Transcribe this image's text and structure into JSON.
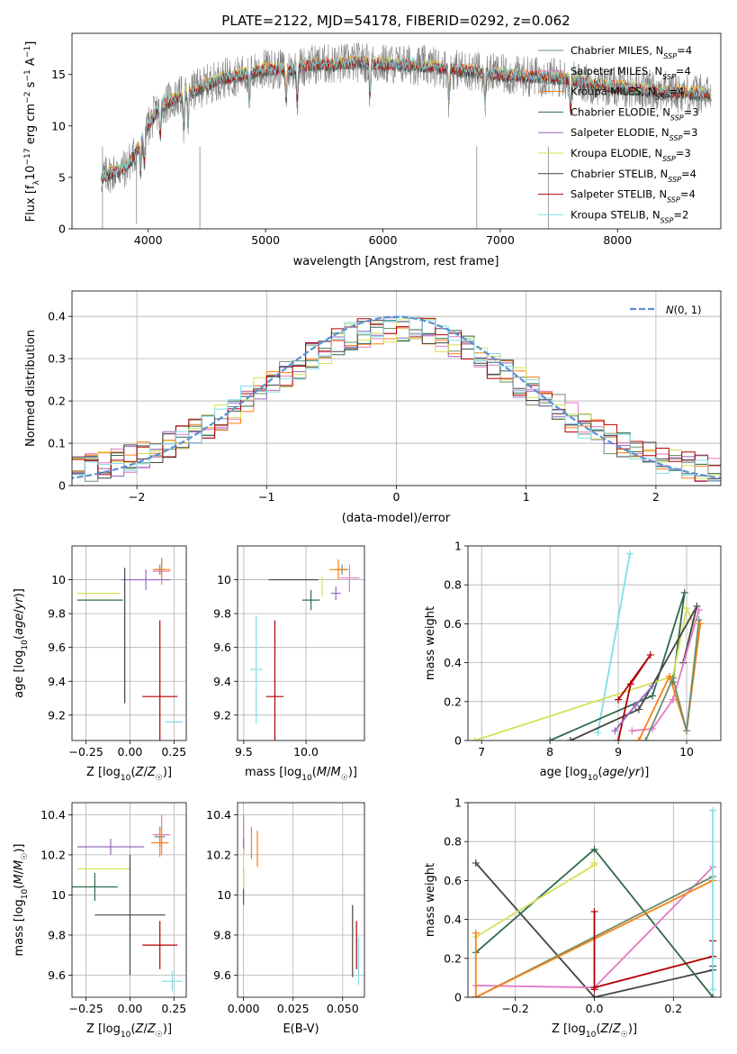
{
  "colors": {
    "Chabrier MILES": "#6b8f71",
    "Salpeter MILES": "#e377c2",
    "Kroupa MILES": "#ff7f0e",
    "Chabrier ELODIE": "#2e6b4a",
    "Salpeter ELODIE": "#9467bd",
    "Kroupa ELODIE": "#d4e157",
    "Chabrier STELIB": "#444444",
    "Salpeter STELIB": "#b30000",
    "Kroupa STELIB": "#80deea",
    "data": "#808080",
    "gauss": "#5b8fd6"
  },
  "chart_data": [
    {
      "type": "line",
      "title": "PLATE=2122, MJD=54178, FIBERID=0292, z=0.062",
      "xlabel": "wavelength [Angstrom, rest frame]",
      "ylabel": "Flux [fλ10⁻¹⁷ erg cm⁻² s⁻¹ A⁻¹]",
      "xlim": [
        3350,
        8880
      ],
      "ylim": [
        0,
        19
      ],
      "xticks": [
        4000,
        5000,
        6000,
        7000,
        8000
      ],
      "yticks": [
        0,
        5,
        10,
        15
      ],
      "legend": "upper-right",
      "series": [
        {
          "name": "Chabrier MILES, N_SSP=4"
        },
        {
          "name": "Salpeter MILES, N_SSP=4"
        },
        {
          "name": "Kroupa MILES, N_SSP=4"
        },
        {
          "name": "Chabrier ELODIE, N_SSP=3"
        },
        {
          "name": "Salpeter ELODIE, N_SSP=3"
        },
        {
          "name": "Kroupa ELODIE, N_SSP=3"
        },
        {
          "name": "Chabrier STELIB, N_SSP=4"
        },
        {
          "name": "Salpeter STELIB, N_SSP=4"
        },
        {
          "name": "Kroupa STELIB, N_SSP=2"
        }
      ],
      "continuum": {
        "x": [
          3600,
          3700,
          3800,
          3900,
          4000,
          4100,
          4200,
          4300,
          4400,
          4500,
          4600,
          4800,
          5000,
          5200,
          5400,
          5600,
          5800,
          6000,
          6200,
          6400,
          6600,
          6800,
          7000,
          7200,
          7400,
          7600,
          7800,
          8000,
          8200,
          8400,
          8600,
          8800
        ],
        "y": [
          5.0,
          5.5,
          5.8,
          7.5,
          10.0,
          12.0,
          12.5,
          13.0,
          13.5,
          14.0,
          14.5,
          15.0,
          15.5,
          15.5,
          16.0,
          16.0,
          16.2,
          16.0,
          16.0,
          15.8,
          15.5,
          15.3,
          15.0,
          14.8,
          14.8,
          14.5,
          14.0,
          13.8,
          13.6,
          13.4,
          13.2,
          13.0
        ]
      }
    },
    {
      "type": "step",
      "xlabel": "(data-model)/error",
      "ylabel": "Normed distribution",
      "xlim": [
        -2.5,
        2.5
      ],
      "ylim": [
        0,
        0.46
      ],
      "xticks": [
        -2,
        -1,
        0,
        1,
        2
      ],
      "xticklabels": [
        "−2",
        "−1",
        "0",
        "1",
        "2"
      ],
      "yticks": [
        0.0,
        0.1,
        0.2,
        0.3,
        0.4
      ],
      "legend": "upper-right",
      "gauss_label": "N(0,1)",
      "bin_width": 0.1
    },
    {
      "type": "errorbar",
      "xlabel": "Z [log10(Z/Z☉)]",
      "ylabel": "age  [log10(age/yr)]",
      "xlim": [
        -0.33,
        0.32
      ],
      "ylim": [
        9.05,
        10.2
      ],
      "xticks": [
        -0.25,
        0.0,
        0.25
      ],
      "xticklabels": [
        "−0.25",
        "0.00",
        "0.25"
      ],
      "yticks": [
        9.2,
        9.4,
        9.6,
        9.8,
        10.0
      ],
      "points": [
        {
          "model": "Chabrier MILES",
          "x": 0.17,
          "xerr": 0.03,
          "y": 10.06,
          "yerr": 0.03
        },
        {
          "model": "Salpeter MILES",
          "x": 0.18,
          "xerr": 0.05,
          "y": 10.05,
          "yerr": 0.08
        },
        {
          "model": "Kroupa MILES",
          "x": 0.18,
          "xerr": 0.05,
          "y": 10.06,
          "yerr": 0.06
        },
        {
          "model": "Chabrier ELODIE",
          "x": -0.17,
          "xerr": 0.13,
          "y": 9.88,
          "yerr": 0.0
        },
        {
          "model": "Salpeter ELODIE",
          "x": 0.09,
          "xerr": 0.14,
          "y": 10.0,
          "yerr": 0.06
        },
        {
          "model": "Kroupa ELODIE",
          "x": -0.18,
          "xerr": 0.12,
          "y": 9.92,
          "yerr": 0.0
        },
        {
          "model": "Chabrier STELIB",
          "x": -0.03,
          "xerr": 0.0,
          "y": 9.67,
          "yerr": 0.4
        },
        {
          "model": "Salpeter STELIB",
          "x": 0.17,
          "xerr": 0.1,
          "y": 9.31,
          "yerr": 0.45
        },
        {
          "model": "Kroupa STELIB",
          "x": 0.25,
          "xerr": 0.05,
          "y": 9.16,
          "yerr": 0.0
        }
      ]
    },
    {
      "type": "errorbar",
      "xlabel": "mass [log10(M/M☉)]",
      "ylabel": "",
      "xlim": [
        9.45,
        10.47
      ],
      "ylim": [
        9.05,
        10.2
      ],
      "xticks": [
        9.5,
        10.0
      ],
      "xticklabels": [
        "9.5",
        "10.0"
      ],
      "yticks": [
        9.2,
        9.4,
        9.6,
        9.8,
        10.0
      ],
      "points": [
        {
          "model": "Chabrier MILES",
          "x": 10.29,
          "xerr": 0.05,
          "y": 10.06,
          "yerr": 0.03
        },
        {
          "model": "Salpeter MILES",
          "x": 10.35,
          "xerr": 0.08,
          "y": 10.01,
          "yerr": 0.08
        },
        {
          "model": "Kroupa MILES",
          "x": 10.26,
          "xerr": 0.07,
          "y": 10.06,
          "yerr": 0.06
        },
        {
          "model": "Chabrier ELODIE",
          "x": 10.04,
          "xerr": 0.07,
          "y": 9.88,
          "yerr": 0.06
        },
        {
          "model": "Salpeter ELODIE",
          "x": 10.24,
          "xerr": 0.04,
          "y": 9.92,
          "yerr": 0.04
        },
        {
          "model": "Kroupa ELODIE",
          "x": 10.13,
          "xerr": 0.0,
          "y": 9.96,
          "yerr": 0.06
        },
        {
          "model": "Chabrier STELIB",
          "x": 9.9,
          "xerr": 0.2,
          "y": 10.0,
          "yerr": 0.0
        },
        {
          "model": "Salpeter STELIB",
          "x": 9.75,
          "xerr": 0.07,
          "y": 9.31,
          "yerr": 0.45
        },
        {
          "model": "Kroupa STELIB",
          "x": 9.6,
          "xerr": 0.05,
          "y": 9.47,
          "yerr": 0.32
        }
      ]
    },
    {
      "type": "line",
      "xlabel": "age  [log10(age/yr)]",
      "ylabel": "mass weight",
      "xlim": [
        6.8,
        10.5
      ],
      "ylim": [
        0,
        1.0
      ],
      "xticks": [
        7,
        8,
        9,
        10
      ],
      "xticklabels": [
        "7",
        "8",
        "9",
        "10"
      ],
      "yticks": [
        0.0,
        0.2,
        0.4,
        0.6,
        0.8,
        1.0
      ],
      "series": [
        {
          "model": "Kroupa STELIB",
          "x": [
            8.7,
            9.17
          ],
          "y": [
            0.04,
            0.96
          ]
        },
        {
          "model": "Chabrier ELODIE",
          "x": [
            8.0,
            9.5,
            9.97,
            9.8
          ],
          "y": [
            0.0,
            0.23,
            0.76,
            0.3
          ]
        },
        {
          "model": "Kroupa ELODIE",
          "x": [
            6.9,
            9.8,
            10.0,
            10.1
          ],
          "y": [
            0.0,
            0.33,
            0.68,
            0.6
          ]
        },
        {
          "model": "Chabrier STELIB",
          "x": [
            8.3,
            9.3,
            10.15,
            9.95
          ],
          "y": [
            0.0,
            0.16,
            0.69,
            0.4
          ]
        },
        {
          "model": "Salpeter STELIB",
          "x": [
            9.0,
            9.18,
            9.47,
            9.0
          ],
          "y": [
            0.0,
            0.29,
            0.44,
            0.21
          ]
        },
        {
          "model": "Salpeter MILES",
          "x": [
            9.2,
            9.5,
            9.8,
            10.18
          ],
          "y": [
            0.05,
            0.06,
            0.21,
            0.67
          ]
        },
        {
          "model": "Kroupa MILES",
          "x": [
            9.3,
            9.75,
            10.0,
            10.2
          ],
          "y": [
            0.0,
            0.33,
            0.05,
            0.6
          ]
        },
        {
          "model": "Chabrier MILES",
          "x": [
            9.4,
            9.8,
            10.0,
            10.18
          ],
          "y": [
            0.0,
            0.32,
            0.05,
            0.62
          ]
        },
        {
          "model": "Salpeter ELODIE",
          "x": [
            8.95,
            9.25,
            9.5
          ],
          "y": [
            0.05,
            0.18,
            0.28
          ]
        }
      ]
    },
    {
      "type": "errorbar",
      "xlabel": "Z [log10(Z/Z☉)]",
      "ylabel": "mass [log10(M/M☉)]",
      "xlim": [
        -0.33,
        0.32
      ],
      "ylim": [
        9.49,
        10.46
      ],
      "xticks": [
        -0.25,
        0.0,
        0.25
      ],
      "xticklabels": [
        "−0.25",
        "0.00",
        "0.25"
      ],
      "yticks": [
        9.6,
        9.8,
        10.0,
        10.2,
        10.4
      ],
      "points": [
        {
          "model": "Chabrier MILES",
          "x": 0.17,
          "xerr": 0.03,
          "y": 10.29,
          "yerr": 0.05
        },
        {
          "model": "Salpeter MILES",
          "x": 0.18,
          "xerr": 0.05,
          "y": 10.3,
          "yerr": 0.1
        },
        {
          "model": "Kroupa MILES",
          "x": 0.17,
          "xerr": 0.05,
          "y": 10.26,
          "yerr": 0.07
        },
        {
          "model": "Chabrier ELODIE",
          "x": -0.2,
          "xerr": 0.13,
          "y": 10.04,
          "yerr": 0.07
        },
        {
          "model": "Salpeter ELODIE",
          "x": -0.11,
          "xerr": 0.19,
          "y": 10.24,
          "yerr": 0.04
        },
        {
          "model": "Kroupa ELODIE",
          "x": -0.15,
          "xerr": 0.15,
          "y": 10.13,
          "yerr": 0.0
        },
        {
          "model": "Chabrier STELIB",
          "x": 0.0,
          "xerr": 0.2,
          "y": 9.9,
          "yerr": 0.3
        },
        {
          "model": "Salpeter STELIB",
          "x": 0.17,
          "xerr": 0.1,
          "y": 9.75,
          "yerr": 0.12
        },
        {
          "model": "Kroupa STELIB",
          "x": 0.24,
          "xerr": 0.06,
          "y": 9.57,
          "yerr": 0.05
        }
      ]
    },
    {
      "type": "errorbar",
      "xlabel": "E(B-V)",
      "ylabel": "",
      "xlim": [
        -0.003,
        0.061
      ],
      "ylim": [
        9.49,
        10.46
      ],
      "xticks": [
        0.0,
        0.025,
        0.05
      ],
      "xticklabels": [
        "0.000",
        "0.025",
        "0.050"
      ],
      "yticks": [
        9.6,
        9.8,
        10.0,
        10.2,
        10.4
      ],
      "points": [
        {
          "model": "Chabrier MILES",
          "x": 0.0,
          "xerr": 0.0,
          "y": 10.29,
          "yerr": 0.09
        },
        {
          "model": "Salpeter MILES",
          "x": 0.0,
          "xerr": 0.0,
          "y": 10.3,
          "yerr": 0.1
        },
        {
          "model": "Kroupa MILES",
          "x": 0.004,
          "xerr": 0.0,
          "y": 10.26,
          "yerr": 0.08
        },
        {
          "model": "Chabrier ELODIE",
          "x": 0.0,
          "xerr": 0.0,
          "y": 10.04,
          "yerr": 0.09
        },
        {
          "model": "Salpeter ELODIE",
          "x": 0.0,
          "xerr": 0.0,
          "y": 10.24,
          "yerr": 0.04
        },
        {
          "model": "Kroupa ELODIE",
          "x": 0.0,
          "xerr": 0.0,
          "y": 10.13,
          "yerr": 0.1
        },
        {
          "model": "Chabrier STELIB",
          "x": 0.055,
          "xerr": 0.0,
          "y": 9.77,
          "yerr": 0.18
        },
        {
          "model": "Salpeter STELIB",
          "x": 0.057,
          "xerr": 0.0,
          "y": 9.75,
          "yerr": 0.12
        },
        {
          "model": "Kroupa STELIB",
          "x": 0.058,
          "xerr": 0.0,
          "y": 9.67,
          "yerr": 0.12
        },
        {
          "model": "Kroupa MILES",
          "x": 0.007,
          "xerr": 0.0,
          "y": 10.23,
          "yerr": 0.09
        }
      ]
    },
    {
      "type": "line",
      "xlabel": "Z [log10(Z/Z☉)]",
      "ylabel": "mass weight",
      "xlim": [
        -0.32,
        0.32
      ],
      "ylim": [
        0,
        1.0
      ],
      "xticks": [
        -0.2,
        0.0,
        0.2
      ],
      "xticklabels": [
        "−0.2",
        "0.0",
        "0.2"
      ],
      "yticks": [
        0.0,
        0.2,
        0.4,
        0.6,
        0.8,
        1.0
      ],
      "series": [
        {
          "model": "Chabrier STELIB",
          "x": [
            -0.3,
            0.0,
            0.3,
            0.3
          ],
          "y": [
            0.69,
            0.0,
            0.14,
            0.16
          ]
        },
        {
          "model": "Chabrier ELODIE",
          "x": [
            -0.3,
            0.0,
            0.3
          ],
          "y": [
            0.23,
            0.76,
            0.0
          ]
        },
        {
          "model": "Kroupa ELODIE",
          "x": [
            -0.3,
            0.0,
            0.0
          ],
          "y": [
            0.31,
            0.68,
            0.69
          ]
        },
        {
          "model": "Salpeter MILES",
          "x": [
            -0.3,
            0.0,
            0.3
          ],
          "y": [
            0.06,
            0.05,
            0.67
          ]
        },
        {
          "model": "Chabrier MILES",
          "x": [
            -0.3,
            -0.3,
            0.3
          ],
          "y": [
            0.0,
            0.0,
            0.62
          ]
        },
        {
          "model": "Kroupa MILES",
          "x": [
            -0.3,
            -0.3,
            -0.3,
            0.3
          ],
          "y": [
            0.33,
            0.0,
            0.0,
            0.6
          ]
        },
        {
          "model": "Salpeter STELIB",
          "x": [
            0.0,
            0.0,
            0.0,
            0.3,
            0.3
          ],
          "y": [
            0.44,
            0.04,
            0.05,
            0.21,
            0.29
          ]
        },
        {
          "model": "Kroupa STELIB",
          "x": [
            0.3,
            0.3
          ],
          "y": [
            0.96,
            0.04
          ]
        }
      ]
    }
  ]
}
